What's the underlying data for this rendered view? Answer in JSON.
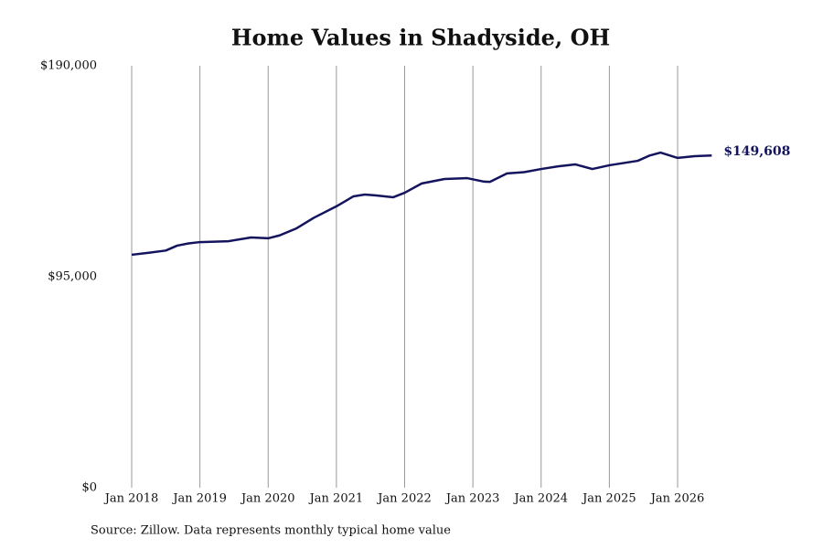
{
  "chart_data": {
    "type": "line",
    "title": "Home Values in Shadyside, OH",
    "source": "Source: Zillow. Data represents monthly typical home value",
    "x": [
      "2018-01",
      "2018-04",
      "2018-07",
      "2018-09",
      "2018-11",
      "2019-01",
      "2019-06",
      "2019-10",
      "2020-01",
      "2020-03",
      "2020-06",
      "2020-09",
      "2021-01",
      "2021-04",
      "2021-06",
      "2021-08",
      "2021-11",
      "2022-01",
      "2022-04",
      "2022-08",
      "2022-12",
      "2023-03",
      "2023-04",
      "2023-07",
      "2023-10",
      "2024-01",
      "2024-04",
      "2024-07",
      "2024-10",
      "2025-01",
      "2025-06",
      "2025-08",
      "2025-10",
      "2026-01",
      "2026-04",
      "2026-07"
    ],
    "series": [
      {
        "name": "Home value",
        "color": "#14145e",
        "values": [
          104900,
          105800,
          106800,
          109000,
          110000,
          110600,
          111000,
          112700,
          112300,
          113600,
          116800,
          121500,
          126700,
          131200,
          132000,
          131600,
          130800,
          132800,
          137000,
          139000,
          139400,
          137800,
          137700,
          141500,
          142100,
          143500,
          144700,
          145600,
          143500,
          145200,
          147200,
          149500,
          150900,
          148500,
          149300,
          149608
        ],
        "value_labels": [
          null,
          null,
          null,
          null,
          null,
          null,
          null,
          null,
          null,
          null,
          null,
          null,
          null,
          null,
          null,
          null,
          null,
          null,
          null,
          null,
          null,
          null,
          null,
          null,
          null,
          null,
          null,
          null,
          null,
          null,
          null,
          null,
          null,
          null,
          null,
          "$149,608"
        ]
      }
    ],
    "ylim": [
      0,
      190000
    ],
    "yticks": [
      {
        "value": 0,
        "label": "$0"
      },
      {
        "value": 95000,
        "label": "$95,000"
      },
      {
        "value": 190000,
        "label": "$190,000"
      }
    ],
    "xticks": [
      {
        "value": "2018-01",
        "label": "Jan 2018"
      },
      {
        "value": "2019-01",
        "label": "Jan 2019"
      },
      {
        "value": "2020-01",
        "label": "Jan 2020"
      },
      {
        "value": "2021-01",
        "label": "Jan 2021"
      },
      {
        "value": "2022-01",
        "label": "Jan 2022"
      },
      {
        "value": "2023-01",
        "label": "Jan 2023"
      },
      {
        "value": "2024-01",
        "label": "Jan 2024"
      },
      {
        "value": "2025-01",
        "label": "Jan 2025"
      },
      {
        "value": "2026-01",
        "label": "Jan 2026"
      }
    ],
    "grid": "x"
  }
}
